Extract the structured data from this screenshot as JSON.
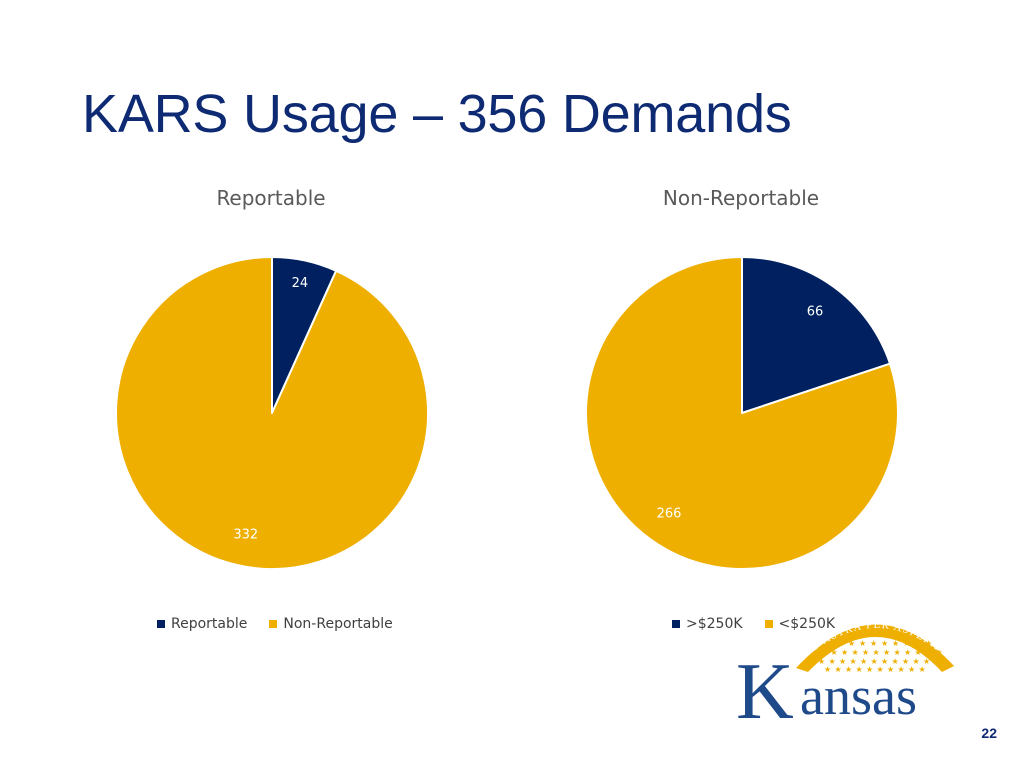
{
  "slide": {
    "title": "KARS Usage – 356 Demands",
    "page_number": "22"
  },
  "colors": {
    "navy": "#002060",
    "gold": "#eeaf00",
    "title": "#0d2a73"
  },
  "logo": {
    "wordmark": "Kansas",
    "motto": "AD ASTRA PER ASPERA"
  },
  "chart_data": [
    {
      "type": "pie",
      "title": "Reportable",
      "categories": [
        "Reportable",
        "Non-Reportable"
      ],
      "values": [
        24,
        332
      ],
      "colors": [
        "#002060",
        "#eeaf00"
      ],
      "legend": "bottom",
      "data_labels": true
    },
    {
      "type": "pie",
      "title": "Non-Reportable",
      "categories": [
        ">$250K",
        "<$250K"
      ],
      "values": [
        66,
        266
      ],
      "colors": [
        "#002060",
        "#eeaf00"
      ],
      "legend": "bottom",
      "data_labels": true
    }
  ]
}
